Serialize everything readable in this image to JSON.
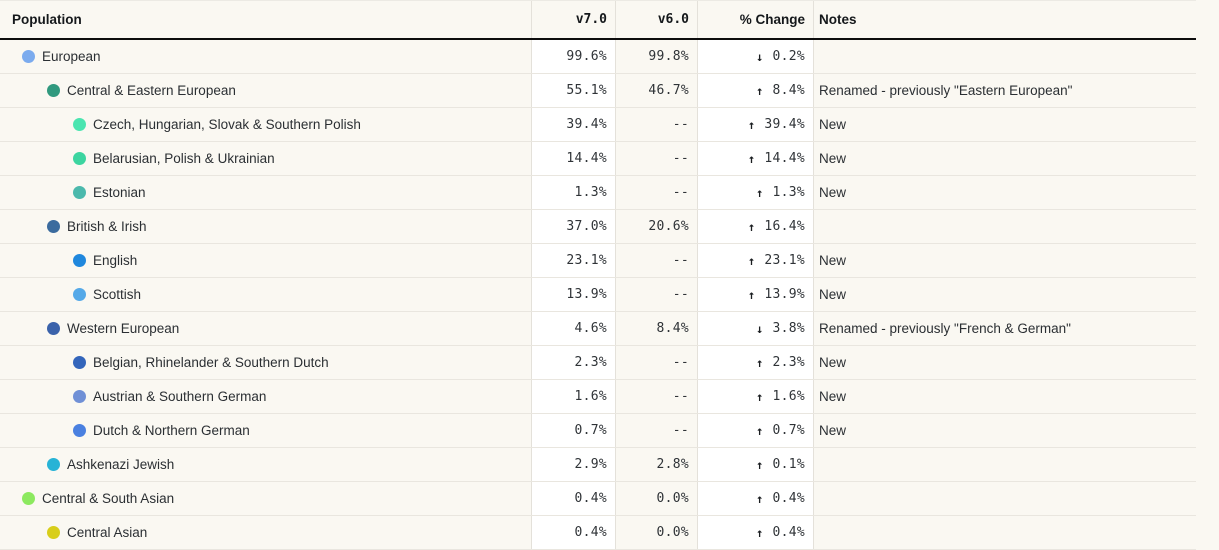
{
  "colors": {
    "page_background": "#faf8f2",
    "shaded_cell_background": "#ffffff",
    "header_rule": "#0d0d0d",
    "row_divider": "#e9e6df"
  },
  "table": {
    "columns": {
      "population": "Population",
      "v7": "v7.0",
      "v6": "v6.0",
      "change": "% Change",
      "notes": "Notes"
    },
    "rows": [
      {
        "label": "European",
        "depth": 0,
        "dot_color": "#7babee",
        "v7": "99.6%",
        "v6": "99.8%",
        "direction": "down",
        "arrow": "↓",
        "change": "0.2%",
        "notes": ""
      },
      {
        "label": "Central & Eastern European",
        "depth": 1,
        "dot_color": "#30997e",
        "v7": "55.1%",
        "v6": "46.7%",
        "direction": "up",
        "arrow": "↑",
        "change": "8.4%",
        "notes": "Renamed - previously \"Eastern European\""
      },
      {
        "label": "Czech, Hungarian, Slovak & Southern Polish",
        "depth": 2,
        "dot_color": "#4be5b0",
        "v7": "39.4%",
        "v6": "--",
        "direction": "up",
        "arrow": "↑",
        "change": "39.4%",
        "notes": "New"
      },
      {
        "label": "Belarusian, Polish & Ukrainian",
        "depth": 2,
        "dot_color": "#3cd5a0",
        "v7": "14.4%",
        "v6": "--",
        "direction": "up",
        "arrow": "↑",
        "change": "14.4%",
        "notes": "New"
      },
      {
        "label": "Estonian",
        "depth": 2,
        "dot_color": "#4bb9ac",
        "v7": "1.3%",
        "v6": "--",
        "direction": "up",
        "arrow": "↑",
        "change": "1.3%",
        "notes": "New"
      },
      {
        "label": "British & Irish",
        "depth": 1,
        "dot_color": "#3b6b9e",
        "v7": "37.0%",
        "v6": "20.6%",
        "direction": "up",
        "arrow": "↑",
        "change": "16.4%",
        "notes": ""
      },
      {
        "label": "English",
        "depth": 2,
        "dot_color": "#1f87dd",
        "v7": "23.1%",
        "v6": "--",
        "direction": "up",
        "arrow": "↑",
        "change": "23.1%",
        "notes": "New"
      },
      {
        "label": "Scottish",
        "depth": 2,
        "dot_color": "#55a9e8",
        "v7": "13.9%",
        "v6": "--",
        "direction": "up",
        "arrow": "↑",
        "change": "13.9%",
        "notes": "New"
      },
      {
        "label": "Western European",
        "depth": 1,
        "dot_color": "#3a62aa",
        "v7": "4.6%",
        "v6": "8.4%",
        "direction": "down",
        "arrow": "↓",
        "change": "3.8%",
        "notes": "Renamed - previously \"French & German\""
      },
      {
        "label": "Belgian, Rhinelander & Southern Dutch",
        "depth": 2,
        "dot_color": "#3365bb",
        "v7": "2.3%",
        "v6": "--",
        "direction": "up",
        "arrow": "↑",
        "change": "2.3%",
        "notes": "New"
      },
      {
        "label": "Austrian & Southern German",
        "depth": 2,
        "dot_color": "#7090d6",
        "v7": "1.6%",
        "v6": "--",
        "direction": "up",
        "arrow": "↑",
        "change": "1.6%",
        "notes": "New"
      },
      {
        "label": "Dutch & Northern German",
        "depth": 2,
        "dot_color": "#4a80e0",
        "v7": "0.7%",
        "v6": "--",
        "direction": "up",
        "arrow": "↑",
        "change": "0.7%",
        "notes": "New"
      },
      {
        "label": "Ashkenazi Jewish",
        "depth": 1,
        "dot_color": "#27b3d6",
        "v7": "2.9%",
        "v6": "2.8%",
        "direction": "up",
        "arrow": "↑",
        "change": "0.1%",
        "notes": ""
      },
      {
        "label": "Central & South Asian",
        "depth": 0,
        "dot_color": "#8ce95f",
        "v7": "0.4%",
        "v6": "0.0%",
        "direction": "up",
        "arrow": "↑",
        "change": "0.4%",
        "notes": ""
      },
      {
        "label": "Central Asian",
        "depth": 1,
        "dot_color": "#d8ce1a",
        "v7": "0.4%",
        "v6": "0.0%",
        "direction": "up",
        "arrow": "↑",
        "change": "0.4%",
        "notes": ""
      }
    ]
  }
}
